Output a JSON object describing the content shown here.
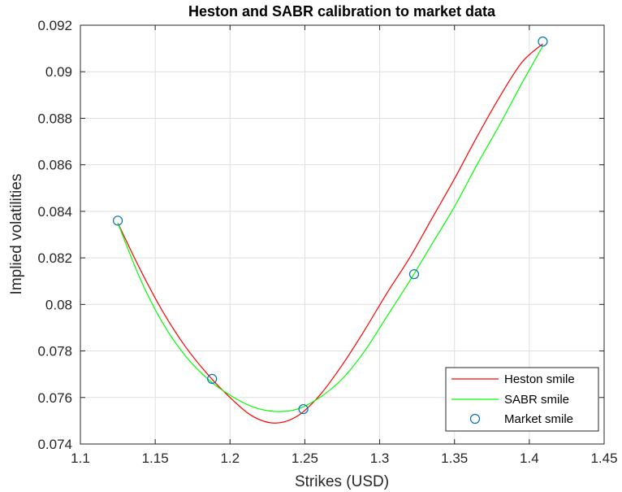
{
  "chart_data": {
    "type": "line",
    "title": "Heston and SABR calibration to market data",
    "xlabel": "Strikes (USD)",
    "ylabel": "Implied volatilities",
    "xlim": [
      1.1,
      1.45
    ],
    "ylim": [
      0.074,
      0.092
    ],
    "xticks": [
      1.1,
      1.15,
      1.2,
      1.25,
      1.3,
      1.35,
      1.4,
      1.45
    ],
    "xtick_labels": [
      "1.1",
      "1.15",
      "1.2",
      "1.25",
      "1.3",
      "1.35",
      "1.4",
      "1.45"
    ],
    "yticks": [
      0.074,
      0.076,
      0.078,
      0.08,
      0.082,
      0.084,
      0.086,
      0.088,
      0.09,
      0.092
    ],
    "ytick_labels": [
      "0.074",
      "0.076",
      "0.078",
      "0.08",
      "0.082",
      "0.084",
      "0.086",
      "0.088",
      "0.09",
      "0.092"
    ],
    "grid": true,
    "legend_position": "bottom-right",
    "series": [
      {
        "name": "Heston smile",
        "style": "line",
        "color": "#ff0000",
        "x": [
          1.125,
          1.14,
          1.155,
          1.17,
          1.185,
          1.2,
          1.215,
          1.23,
          1.245,
          1.26,
          1.275,
          1.29,
          1.305,
          1.32,
          1.335,
          1.35,
          1.365,
          1.38,
          1.395,
          1.409
        ],
        "y": [
          0.0835,
          0.0815,
          0.0797,
          0.0782,
          0.077,
          0.076,
          0.0752,
          0.0749,
          0.0752,
          0.0761,
          0.0774,
          0.0789,
          0.0805,
          0.082,
          0.0837,
          0.0854,
          0.0872,
          0.0889,
          0.0904,
          0.0912
        ]
      },
      {
        "name": "SABR smile",
        "style": "line",
        "color": "#00ff00",
        "x": [
          1.125,
          1.14,
          1.155,
          1.17,
          1.185,
          1.2,
          1.215,
          1.23,
          1.245,
          1.26,
          1.275,
          1.29,
          1.305,
          1.32,
          1.335,
          1.35,
          1.365,
          1.38,
          1.395,
          1.409
        ],
        "y": [
          0.0835,
          0.0811,
          0.0792,
          0.0778,
          0.0768,
          0.0761,
          0.0756,
          0.0754,
          0.0755,
          0.076,
          0.0768,
          0.078,
          0.0795,
          0.081,
          0.0826,
          0.0842,
          0.086,
          0.0877,
          0.0895,
          0.0911
        ]
      },
      {
        "name": "Market smile",
        "style": "marker",
        "color": "#0072bd",
        "x": [
          1.125,
          1.188,
          1.249,
          1.323,
          1.409
        ],
        "y": [
          0.0836,
          0.0768,
          0.0755,
          0.0813,
          0.0913
        ]
      }
    ]
  }
}
